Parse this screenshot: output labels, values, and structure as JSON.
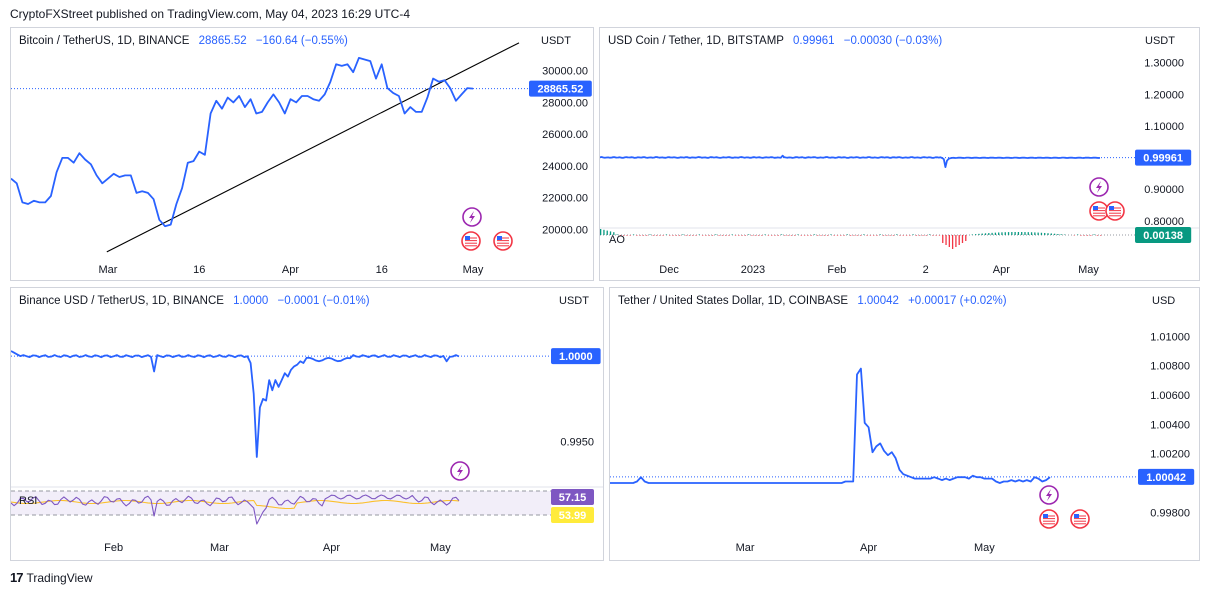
{
  "header": {
    "text": "CryptoFXStreet published on TradingView.com, May 04, 2023 16:29 UTC-4"
  },
  "footer": {
    "logo": "17",
    "brand": "TradingView"
  },
  "colors": {
    "line": "#2962ff",
    "tag": "#2962ff",
    "trend": "#000000",
    "ao_tag": "#089981",
    "rsi_tag": "#7e57c2",
    "ma_tag": "#ffeb3b",
    "event": "#9c27b0",
    "flag": "#f23645"
  },
  "panels": [
    {
      "id": "btc",
      "symbol": "Bitcoin / TetherUS, 1D, BINANCE",
      "last": "28865.52",
      "change": "−160.64 (−0.55%)",
      "currency": "USDT",
      "price_tag": "28865.52"
    },
    {
      "id": "usdc",
      "symbol": "USD Coin / Tether, 1D, BITSTAMP",
      "last": "0.99961",
      "change": "−0.00030 (−0.03%)",
      "currency": "USDT",
      "price_tag": "0.99961",
      "indicator": {
        "label": "AO",
        "tag": "0.00138"
      }
    },
    {
      "id": "busd",
      "symbol": "Binance USD / TetherUS, 1D, BINANCE",
      "last": "1.0000",
      "change": "−0.0001 (−0.01%)",
      "currency": "USDT",
      "price_tag": "1.0000",
      "indicator": {
        "label": "RSI",
        "tag": "57.15",
        "tag2": "53.99"
      }
    },
    {
      "id": "usdt",
      "symbol": "Tether / United States Dollar, 1D, COINBASE",
      "last": "1.00042",
      "change": "+0.00017 (+0.02%)",
      "currency": "USD",
      "price_tag": "1.00042"
    }
  ],
  "chart_data": [
    {
      "type": "line",
      "title": "Bitcoin / TetherUS, 1D, BINANCE",
      "yticks": [
        "30000.00",
        "28000.00",
        "26000.00",
        "24000.00",
        "22000.00",
        "20000.00"
      ],
      "ytick_values": [
        30000,
        28000,
        26000,
        24000,
        22000,
        20000
      ],
      "xticks": [
        "Mar",
        "16",
        "Apr",
        "16",
        "May"
      ],
      "xtick_index": [
        17,
        33,
        49,
        65,
        81
      ],
      "ylim": [
        18700,
        31300
      ],
      "values": [
        23200,
        22900,
        21700,
        21600,
        21800,
        21700,
        21700,
        22100,
        23600,
        24500,
        24500,
        24200,
        24800,
        24400,
        24100,
        23400,
        22900,
        23200,
        23500,
        23300,
        23400,
        23400,
        22300,
        22400,
        22300,
        21900,
        20600,
        20200,
        20300,
        21600,
        22600,
        24200,
        24300,
        24900,
        24700,
        27300,
        28100,
        27600,
        28300,
        28000,
        28400,
        27700,
        28200,
        27300,
        27400,
        28000,
        28500,
        28000,
        27300,
        28200,
        28000,
        28400,
        28400,
        28200,
        28100,
        28500,
        29300,
        30400,
        30300,
        30400,
        29900,
        30800,
        30700,
        30600,
        29500,
        30400,
        28900,
        28600,
        28400,
        27300,
        27700,
        27400,
        27400,
        28300,
        29500,
        29300,
        29400,
        28900,
        28100,
        28500,
        28900,
        28866
      ],
      "trendline": {
        "from": [
          20.2,
          19200
        ],
        "to": [
          81.1,
          30300
        ],
        "extend": true
      }
    },
    {
      "type": "line",
      "title": "USD Coin / Tether, 1D, BITSTAMP",
      "yticks": [
        "1.30000",
        "1.20000",
        "1.10000",
        "0.90000",
        "0.80000"
      ],
      "ytick_values": [
        1.3,
        1.2,
        1.1,
        0.9,
        0.8
      ],
      "xticks": [
        "Dec",
        "2023",
        "Feb",
        "2",
        "Apr",
        "May"
      ],
      "xtick_index": [
        42,
        93,
        144,
        198,
        244,
        297
      ],
      "ylim": [
        0.79,
        1.34
      ],
      "values": "near 1.000 for 305 sessions; depeg wick to 0.97 near index 212; small spike to 1.005 near index 111",
      "ao_histogram": "small green bars at start and after index 220, red bars near index 208-220"
    },
    {
      "type": "line",
      "title": "Binance USD / TetherUS, 1D, BINANCE",
      "yticks": [
        "0.9950"
      ],
      "ytick_values": [
        0.995
      ],
      "xticks": [
        "Feb",
        "Mar",
        "Apr",
        "May"
      ],
      "xtick_index": [
        33,
        67,
        103,
        138
      ],
      "ylim": [
        0.9924,
        1.0027
      ],
      "values": "near 1.0000 for 145 sessions; dip to 0.9990 near index 46; sharp dip to 0.9940 near index 78; recovery to 1.0000 by index 95",
      "rsi": {
        "last": 57.15,
        "ma": 53.99
      }
    },
    {
      "type": "line",
      "title": "Tether / United States Dollar, 1D, COINBASE",
      "yticks": [
        "1.01000",
        "1.00800",
        "1.00600",
        "1.00400",
        "1.00200",
        "0.99800"
      ],
      "ytick_values": [
        1.01,
        1.008,
        1.006,
        1.004,
        1.002,
        0.998
      ],
      "xticks": [
        "Mar",
        "Apr",
        "May"
      ],
      "xtick_index": [
        35,
        67,
        97
      ],
      "ylim": [
        0.99625,
        1.0118
      ],
      "values": [
        1.0,
        1.0,
        1.0,
        1.0,
        1.0,
        1.0,
        1.0,
        1.0001,
        1.0004,
        1.0001,
        1.0,
        1.0,
        1.0,
        1.0,
        1.0,
        1.0,
        1.0,
        1.0,
        1.0,
        1.0,
        1.0,
        1.0,
        1.0,
        1.0,
        1.0,
        1.0,
        1.0,
        1.0,
        1.0,
        1.0,
        1.0,
        1.0,
        1.0,
        1.0,
        1.0,
        1.0,
        1.0,
        1.0,
        1.0,
        1.0,
        1.0,
        1.0,
        1.0,
        1.0,
        1.0,
        1.0,
        1.0,
        1.0,
        1.0,
        1.0,
        1.0,
        1.0,
        1.0,
        1.0,
        1.0,
        1.0,
        1.0,
        1.0,
        1.0,
        1.0,
        1.0,
        1.0001,
        1.0001,
        1.0001,
        1.0074,
        1.0078,
        1.0041,
        1.0038,
        1.0021,
        1.0025,
        1.0027,
        1.0022,
        1.0019,
        1.0021,
        1.0017,
        1.0009,
        1.0006,
        1.0005,
        1.0004,
        1.0003,
        1.0003,
        1.0003,
        1.0003,
        1.0003,
        1.0004,
        1.0003,
        1.0002,
        1.0003,
        1.0002,
        1.0003,
        1.0004,
        1.0004,
        1.0004,
        1.0003,
        1.0005,
        1.0004,
        1.0004,
        1.0003,
        1.0003,
        1.0003,
        1.0001,
        1.0,
        1.0001,
        1.0001,
        1.0002,
        1.0001,
        1.0002,
        1.0001,
        1.0002,
        1.0001,
        1.0004,
        1.0003,
        1.0001,
        1.0002,
        1.0004
      ]
    }
  ]
}
